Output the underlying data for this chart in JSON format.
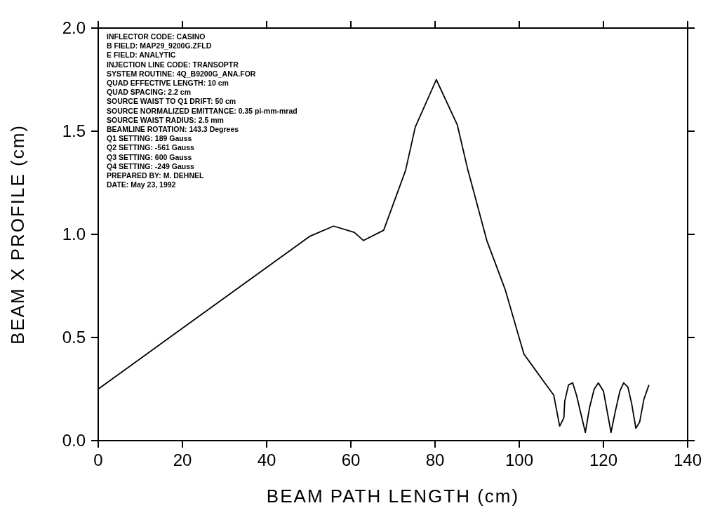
{
  "chart_data": {
    "type": "line",
    "xlabel": "BEAM PATH LENGTH (cm)",
    "ylabel": "BEAM X PROFILE (cm)",
    "xlim": [
      0,
      140
    ],
    "xticks": [
      0,
      20,
      40,
      60,
      80,
      100,
      120,
      140
    ],
    "ylim": [
      0,
      2
    ],
    "yticks": [
      {
        "value": 0,
        "label": "0.0"
      },
      {
        "value": 0.5,
        "label": "0.5"
      },
      {
        "value": 1,
        "label": "1.0"
      },
      {
        "value": 1.5,
        "label": "1.5"
      },
      {
        "value": 2,
        "label": "2.0"
      }
    ],
    "grid": false,
    "marker": "none",
    "line_style": "solid",
    "series": [
      {
        "color": "#000000",
        "x": [
          0,
          50.2,
          55.9,
          60.8,
          63,
          67.8,
          73,
          75.3,
          80.3,
          85.3,
          87.7,
          92.3,
          96.7,
          101.1,
          105.7,
          108.2,
          109.6,
          110.6,
          110.8,
          111.7,
          112.7,
          113.6,
          115.7,
          116.7,
          117.8,
          118.8,
          120,
          121.8,
          122.8,
          123.9,
          124.8,
          125.8,
          126.7,
          127.7,
          128.6,
          129.6,
          130.8
        ],
        "values": [
          0.25,
          0.99,
          1.04,
          1.01,
          0.97,
          1.02,
          1.31,
          1.52,
          1.75,
          1.53,
          1.32,
          0.97,
          0.73,
          0.42,
          0.29,
          0.22,
          0.07,
          0.11,
          0.19,
          0.27,
          0.28,
          0.22,
          0.04,
          0.16,
          0.25,
          0.28,
          0.24,
          0.04,
          0.14,
          0.24,
          0.28,
          0.26,
          0.18,
          0.06,
          0.09,
          0.2,
          0.27
        ]
      }
    ],
    "annotations": [
      "INFLECTOR CODE: CASINO",
      "B FIELD: MAP29_9200G.ZFLD",
      "E FIELD: ANALYTIC",
      "INJECTION LINE CODE: TRANSOPTR",
      "SYSTEM ROUTINE: 4Q_B9200G_ANA.FOR",
      "QUAD EFFECTIVE LENGTH: 10 cm",
      "QUAD SPACING: 2.2 cm",
      "SOURCE WAIST TO Q1 DRIFT: 50 cm",
      "SOURCE NORMALIZED EMITTANCE: 0.35 pi-mm-mrad",
      "SOURCE WAIST RADIUS: 2.5 mm",
      "BEAMLINE ROTATION: 143.3 Degrees",
      "Q1 SETTING: 189 Gauss",
      "Q2 SETTING: -561 Gauss",
      "Q3 SETTING: 600 Gauss",
      "Q4 SETTING: -249 Gauss",
      "PREPARED BY: M. DEHNEL",
      "DATE: May 23, 1992"
    ]
  }
}
